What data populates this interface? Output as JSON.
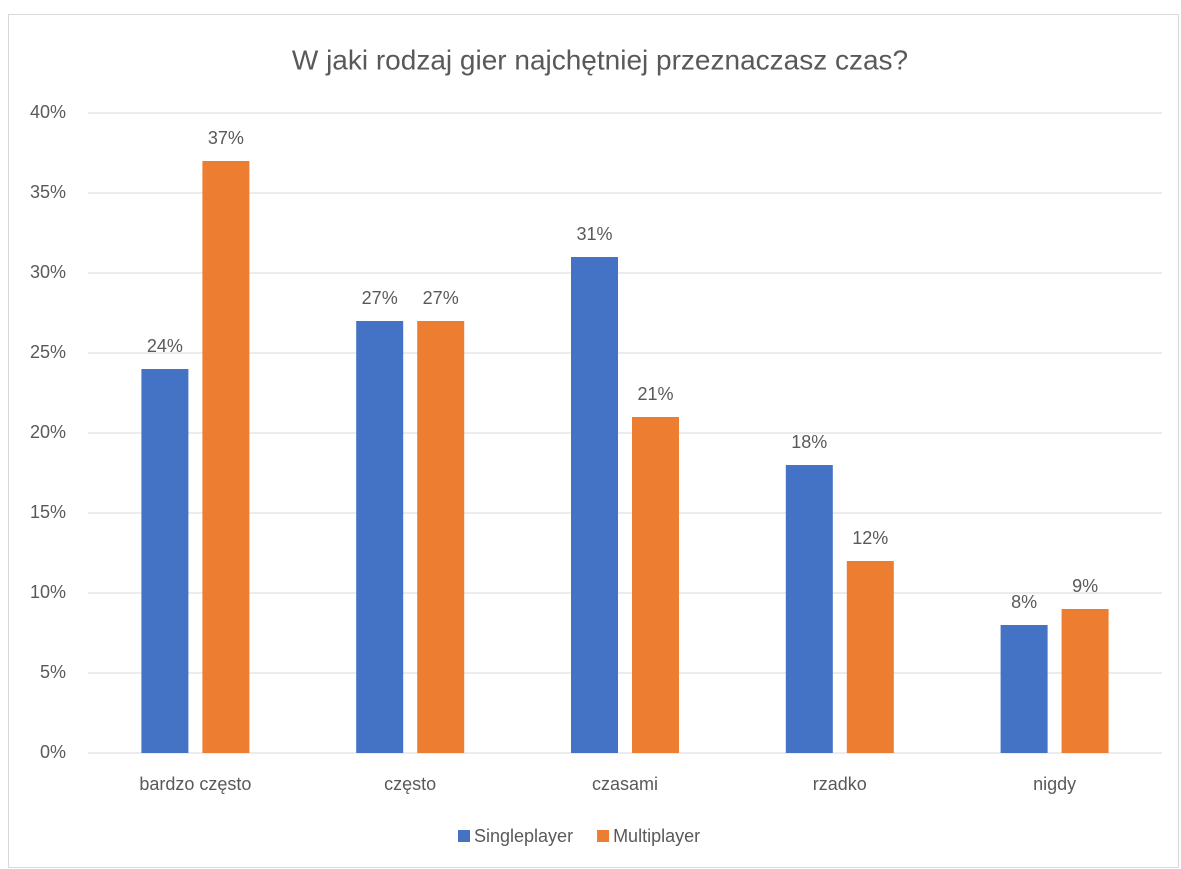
{
  "chart_data": {
    "type": "bar",
    "title": "W jaki rodzaj gier najchętniej przeznaczasz czas?",
    "categories": [
      "bardzo często",
      "często",
      "czasami",
      "rzadko",
      "nigdy"
    ],
    "series": [
      {
        "name": "Singleplayer",
        "color": "#4472c4",
        "values": [
          24,
          27,
          31,
          18,
          8
        ],
        "value_labels": [
          "24%",
          "27%",
          "31%",
          "18%",
          "8%"
        ]
      },
      {
        "name": "Multiplayer",
        "color": "#ed7d31",
        "values": [
          37,
          27,
          21,
          12,
          9
        ],
        "value_labels": [
          "37%",
          "27%",
          "21%",
          "12%",
          "9%"
        ]
      }
    ],
    "ylim": [
      0,
      40
    ],
    "yticks": [
      {
        "value": 0,
        "label": "0%"
      },
      {
        "value": 5,
        "label": "5%"
      },
      {
        "value": 10,
        "label": "10%"
      },
      {
        "value": 15,
        "label": "15%"
      },
      {
        "value": 20,
        "label": "20%"
      },
      {
        "value": 25,
        "label": "25%"
      },
      {
        "value": 30,
        "label": "30%"
      },
      {
        "value": 35,
        "label": "35%"
      },
      {
        "value": 40,
        "label": "40%"
      }
    ],
    "grid": true,
    "legend": "bottom"
  }
}
